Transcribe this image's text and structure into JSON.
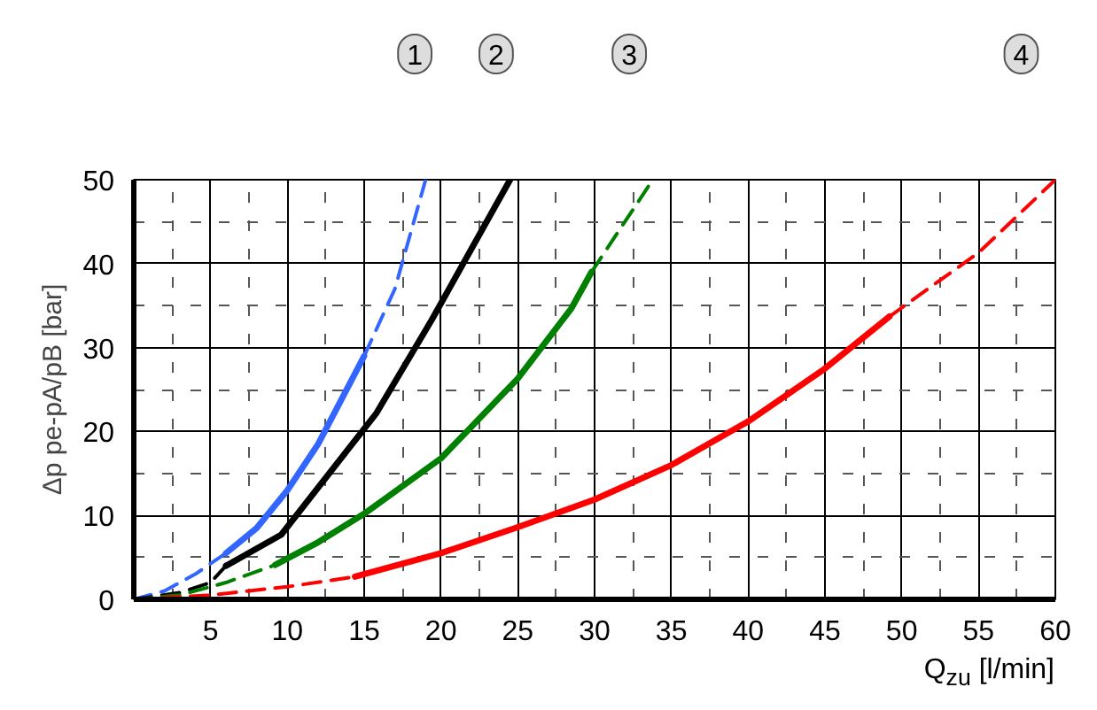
{
  "chart_data": {
    "type": "line",
    "xlabel": "Q$_{zu}$ [l/min]",
    "ylabel": "Δp pe-pA/pB [bar]",
    "xlim": [
      0,
      60
    ],
    "ylim": [
      0,
      50
    ],
    "xticks": [
      5,
      10,
      15,
      20,
      25,
      30,
      35,
      40,
      45,
      50,
      55,
      60
    ],
    "yticks": [
      0,
      10,
      20,
      30,
      40,
      50
    ],
    "grid": true,
    "marker": "none",
    "annotations": [
      "1",
      "2",
      "3",
      "4"
    ],
    "series": [
      {
        "color": "#3366ff",
        "line_style": "dashed",
        "x": [
          0,
          2,
          4,
          6
        ],
        "values": [
          0,
          1,
          3,
          5.5
        ]
      },
      {
        "color": "#3366ff",
        "line_style": "solid",
        "x": [
          6,
          8,
          10,
          12,
          15
        ],
        "values": [
          5.5,
          8.5,
          13,
          18.5,
          29
        ]
      },
      {
        "color": "#3366ff",
        "line_style": "dashed",
        "x": [
          15,
          17,
          19
        ],
        "values": [
          29,
          37,
          50
        ]
      },
      {
        "color": "#000000",
        "line_style": "dashed",
        "x": [
          0,
          3,
          5,
          6
        ],
        "values": [
          0,
          0.8,
          2,
          4
        ]
      },
      {
        "color": "#000000",
        "line_style": "solid",
        "x": [
          6,
          9.6,
          15.8,
          19.4,
          24.5
        ],
        "values": [
          4,
          7.7,
          22.2,
          33.3,
          50
        ]
      },
      {
        "color": "#008000",
        "line_style": "dashed",
        "x": [
          0,
          3,
          6,
          9.2
        ],
        "values": [
          0,
          0.5,
          2,
          4.1
        ]
      },
      {
        "color": "#008000",
        "line_style": "solid",
        "x": [
          9.2,
          12,
          15,
          20,
          25,
          28.5,
          29.8
        ],
        "values": [
          4.1,
          6.8,
          10.2,
          16.8,
          26.3,
          34.7,
          39
        ]
      },
      {
        "color": "#008000",
        "line_style": "dashed",
        "x": [
          29.8,
          33.5
        ],
        "values": [
          39,
          49.2
        ]
      },
      {
        "color": "#ff0000",
        "line_style": "dashed",
        "x": [
          0,
          5,
          10,
          14.4
        ],
        "values": [
          0,
          0.5,
          1.5,
          2.7
        ]
      },
      {
        "color": "#ff0000",
        "line_style": "solid",
        "x": [
          14.4,
          20,
          25,
          30,
          35,
          40,
          45,
          49.2
        ],
        "values": [
          2.7,
          5.5,
          8.6,
          11.9,
          16,
          21.2,
          27.5,
          33.7
        ]
      },
      {
        "color": "#ff0000",
        "line_style": "dashed",
        "x": [
          49.2,
          55,
          60
        ],
        "values": [
          33.7,
          41.3,
          50
        ]
      }
    ]
  }
}
